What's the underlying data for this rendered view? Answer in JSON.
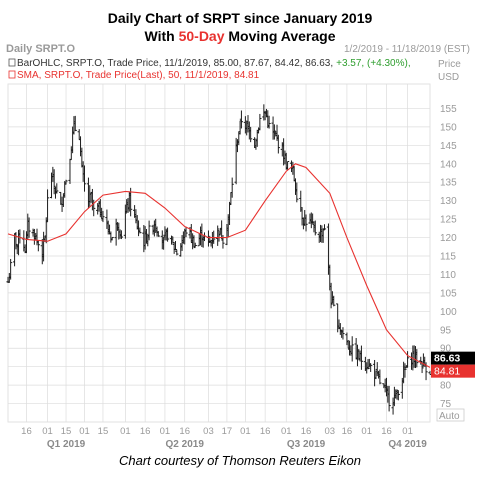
{
  "header": {
    "title_line1": "Daily Chart of SRPT since January 2019",
    "title_line2_prefix": "With ",
    "title_line2_highlight": "50-Day",
    "title_line2_suffix": " Moving Average"
  },
  "caption": "Chart courtesy of Thomson Reuters Eikon",
  "panel": {
    "name": "Daily SRPT.O",
    "date_range": "1/2/2019 - 11/18/2019 (EST)",
    "price_label": "Price",
    "currency": "USD",
    "auto_label": "Auto",
    "legend_ohlc": "BarOHLC, SRPT.O, Trade Price, 11/1/2019, 85.00, 87.67, 84.42, 86.63,",
    "legend_change": "+3.57, (+4.30%),",
    "legend_sma": "SMA, SRPT.O, Trade Price(Last), 50, 11/1/2019, 84.81",
    "last_price": "86.63",
    "sma_value": "84.81"
  },
  "colors": {
    "bars": "#1c1c1c",
    "sma": "#e8322f",
    "title_highlight": "#e8322f",
    "change_positive": "#2e9e2e",
    "grid": "#dcdcdc",
    "axis_text": "#9a9a9a",
    "price_tag": "#000000",
    "sma_tag": "#e8322f"
  },
  "chart_data": {
    "type": "ohlc",
    "ticker": "SRPT.O",
    "ylim": [
      70,
      160
    ],
    "y_ticks": [
      75,
      80,
      85,
      90,
      95,
      100,
      105,
      110,
      115,
      120,
      125,
      130,
      135,
      140,
      145,
      150,
      155
    ],
    "x_ticks": [
      {
        "label": "16",
        "date": "2019-01-16"
      },
      {
        "label": "01",
        "date": "2019-02-01"
      },
      {
        "label": "15",
        "date": "2019-02-15"
      },
      {
        "label": "01",
        "date": "2019-03-01"
      },
      {
        "label": "15",
        "date": "2019-03-15"
      },
      {
        "label": "01",
        "date": "2019-04-01"
      },
      {
        "label": "16",
        "date": "2019-04-16"
      },
      {
        "label": "01",
        "date": "2019-05-01"
      },
      {
        "label": "16",
        "date": "2019-05-16"
      },
      {
        "label": "03",
        "date": "2019-06-03"
      },
      {
        "label": "17",
        "date": "2019-06-17"
      },
      {
        "label": "01",
        "date": "2019-07-01"
      },
      {
        "label": "16",
        "date": "2019-07-16"
      },
      {
        "label": "01",
        "date": "2019-08-01"
      },
      {
        "label": "16",
        "date": "2019-08-16"
      },
      {
        "label": "03",
        "date": "2019-09-03"
      },
      {
        "label": "16",
        "date": "2019-09-16"
      },
      {
        "label": "01",
        "date": "2019-10-01"
      },
      {
        "label": "16",
        "date": "2019-10-16"
      },
      {
        "label": "01",
        "date": "2019-11-01"
      }
    ],
    "quarters": [
      {
        "label": "Q1 2019",
        "date": "2019-02-15"
      },
      {
        "label": "Q2 2019",
        "date": "2019-05-16"
      },
      {
        "label": "Q3 2019",
        "date": "2019-08-16"
      },
      {
        "label": "Q4 2019",
        "date": "2019-11-01"
      }
    ],
    "x_start": "2019-01-02",
    "x_end": "2019-11-18",
    "price_path": [
      [
        "2019-01-02",
        108
      ],
      [
        "2019-01-04",
        112
      ],
      [
        "2019-01-07",
        120
      ],
      [
        "2019-01-09",
        118
      ],
      [
        "2019-01-11",
        121
      ],
      [
        "2019-01-15",
        117
      ],
      [
        "2019-01-17",
        123
      ],
      [
        "2019-01-22",
        121
      ],
      [
        "2019-01-24",
        119
      ],
      [
        "2019-01-28",
        116
      ],
      [
        "2019-01-30",
        120
      ],
      [
        "2019-02-01",
        130
      ],
      [
        "2019-02-04",
        137
      ],
      [
        "2019-02-06",
        134
      ],
      [
        "2019-02-08",
        132
      ],
      [
        "2019-02-11",
        128
      ],
      [
        "2019-02-13",
        133
      ],
      [
        "2019-02-15",
        136
      ],
      [
        "2019-02-19",
        145
      ],
      [
        "2019-02-21",
        150
      ],
      [
        "2019-02-25",
        148
      ],
      [
        "2019-02-27",
        138
      ],
      [
        "2019-03-01",
        134
      ],
      [
        "2019-03-04",
        130
      ],
      [
        "2019-03-06",
        131
      ],
      [
        "2019-03-08",
        127
      ],
      [
        "2019-03-12",
        128
      ],
      [
        "2019-03-15",
        126
      ],
      [
        "2019-03-19",
        122
      ],
      [
        "2019-03-22",
        120
      ],
      [
        "2019-03-26",
        124
      ],
      [
        "2019-03-29",
        121
      ],
      [
        "2019-04-02",
        128
      ],
      [
        "2019-04-04",
        130
      ],
      [
        "2019-04-08",
        125
      ],
      [
        "2019-04-11",
        122
      ],
      [
        "2019-04-15",
        119
      ],
      [
        "2019-04-18",
        121
      ],
      [
        "2019-04-23",
        124
      ],
      [
        "2019-04-26",
        122
      ],
      [
        "2019-04-30",
        119
      ],
      [
        "2019-05-03",
        121
      ],
      [
        "2019-05-07",
        118
      ],
      [
        "2019-05-10",
        116
      ],
      [
        "2019-05-14",
        119
      ],
      [
        "2019-05-17",
        122
      ],
      [
        "2019-05-21",
        120
      ],
      [
        "2019-05-24",
        118
      ],
      [
        "2019-05-29",
        121
      ],
      [
        "2019-06-03",
        118
      ],
      [
        "2019-06-06",
        120
      ],
      [
        "2019-06-11",
        122
      ],
      [
        "2019-06-14",
        120
      ],
      [
        "2019-06-18",
        125
      ],
      [
        "2019-06-21",
        135
      ],
      [
        "2019-06-25",
        147
      ],
      [
        "2019-06-28",
        152
      ],
      [
        "2019-07-02",
        150
      ],
      [
        "2019-07-08",
        146
      ],
      [
        "2019-07-12",
        152
      ],
      [
        "2019-07-16",
        154
      ],
      [
        "2019-07-19",
        150
      ],
      [
        "2019-07-24",
        147
      ],
      [
        "2019-07-29",
        144
      ],
      [
        "2019-08-01",
        140
      ],
      [
        "2019-08-06",
        138
      ],
      [
        "2019-08-09",
        132
      ],
      [
        "2019-08-14",
        125
      ],
      [
        "2019-08-19",
        124
      ],
      [
        "2019-08-22",
        122
      ],
      [
        "2019-08-27",
        121
      ],
      [
        "2019-08-30",
        123
      ],
      [
        "2019-09-04",
        103
      ],
      [
        "2019-09-09",
        97
      ],
      [
        "2019-09-13",
        94
      ],
      [
        "2019-09-18",
        90
      ],
      [
        "2019-09-24",
        88
      ],
      [
        "2019-09-30",
        86
      ],
      [
        "2019-10-04",
        85
      ],
      [
        "2019-10-09",
        82
      ],
      [
        "2019-10-14",
        79
      ],
      [
        "2019-10-18",
        76
      ],
      [
        "2019-10-23",
        77
      ],
      [
        "2019-10-28",
        82
      ],
      [
        "2019-11-01",
        86
      ],
      [
        "2019-11-05",
        88
      ],
      [
        "2019-11-08",
        87
      ],
      [
        "2019-11-12",
        86
      ],
      [
        "2019-11-15",
        85
      ],
      [
        "2019-11-18",
        84
      ]
    ],
    "sma_path": [
      [
        "2019-01-02",
        121
      ],
      [
        "2019-01-16",
        119.5
      ],
      [
        "2019-02-01",
        119
      ],
      [
        "2019-02-15",
        121
      ],
      [
        "2019-03-01",
        127
      ],
      [
        "2019-03-15",
        131.5
      ],
      [
        "2019-04-01",
        132.5
      ],
      [
        "2019-04-16",
        132
      ],
      [
        "2019-05-01",
        128
      ],
      [
        "2019-05-16",
        123
      ],
      [
        "2019-06-03",
        120
      ],
      [
        "2019-06-17",
        120
      ],
      [
        "2019-07-01",
        122
      ],
      [
        "2019-07-16",
        130
      ],
      [
        "2019-08-01",
        138
      ],
      [
        "2019-08-08",
        140
      ],
      [
        "2019-08-16",
        139
      ],
      [
        "2019-09-03",
        132
      ],
      [
        "2019-09-16",
        120
      ],
      [
        "2019-10-01",
        107
      ],
      [
        "2019-10-16",
        95
      ],
      [
        "2019-11-01",
        88
      ],
      [
        "2019-11-18",
        84.81
      ]
    ]
  }
}
